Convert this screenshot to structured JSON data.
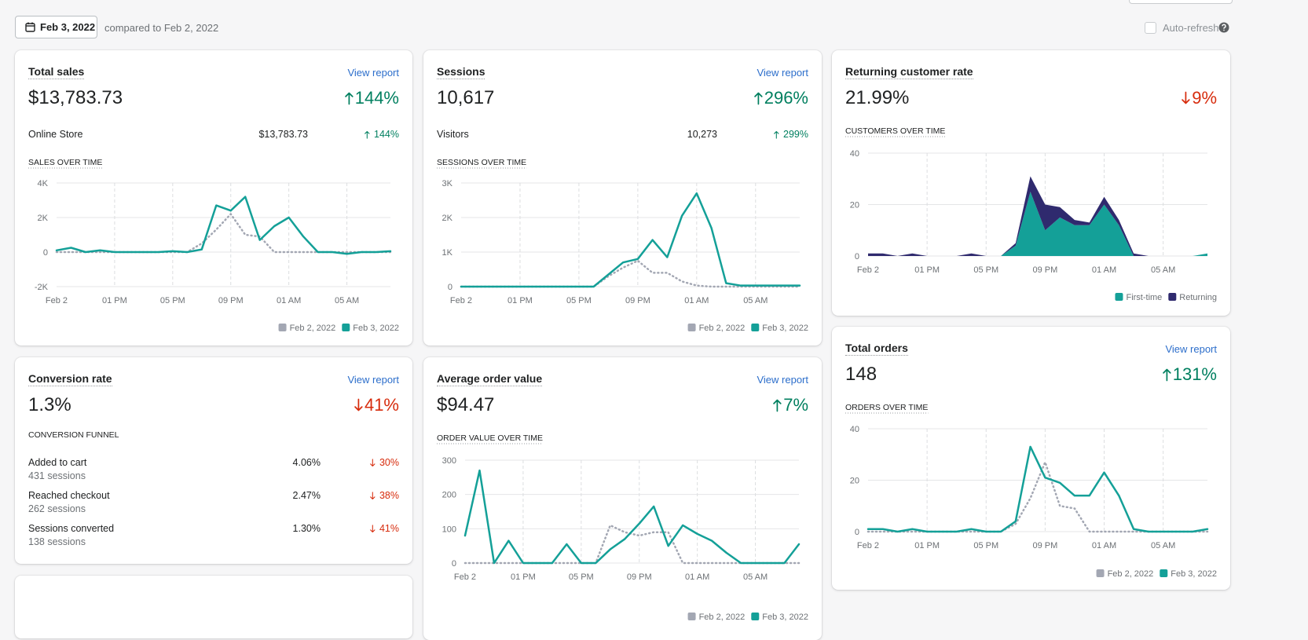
{
  "header": {
    "date": "Feb 3, 2022",
    "compared": "compared to Feb 2, 2022",
    "auto_refresh": "Auto-refresh"
  },
  "cards": [
    {
      "title": "Total sales",
      "link": "View report",
      "value": "$13,783.73",
      "change": "144%",
      "direction": "up",
      "breakdown": {
        "label": "Online Store",
        "value": "$13,783.73",
        "change": "144%",
        "direction": "up"
      }
    },
    {
      "title": "Sessions",
      "link": "View report",
      "value": "10,617",
      "change": "296%",
      "direction": "up",
      "breakdown": {
        "label": "Visitors",
        "value": "10,273",
        "change": "299%",
        "direction": "up"
      }
    },
    {
      "title": "Returning customer rate",
      "value": "21.99%",
      "change": "9%",
      "direction": "down"
    },
    {
      "title": "Conversion rate",
      "link": "View report",
      "value": "1.3%",
      "change": "41%",
      "direction": "down",
      "funnel": {
        "title": "CONVERSION FUNNEL",
        "rows": [
          {
            "label": "Added to cart",
            "sessions": "431 sessions",
            "value": "4.06%",
            "change": "30%",
            "direction": "down"
          },
          {
            "label": "Reached checkout",
            "sessions": "262 sessions",
            "value": "2.47%",
            "change": "38%",
            "direction": "down"
          },
          {
            "label": "Sessions converted",
            "sessions": "138 sessions",
            "value": "1.30%",
            "change": "41%",
            "direction": "down"
          }
        ]
      }
    },
    {
      "title": "Average order value",
      "link": "View report",
      "value": "$94.47",
      "change": "7%",
      "direction": "up"
    },
    {
      "title": "Total orders",
      "link": "View report",
      "value": "148",
      "change": "131%",
      "direction": "up"
    }
  ],
  "chart_data": [
    {
      "type": "line",
      "title": "SALES OVER TIME",
      "categories": [
        "Feb 2",
        null,
        null,
        null,
        "01 PM",
        null,
        null,
        null,
        "05 PM",
        null,
        null,
        null,
        "09 PM",
        null,
        null,
        null,
        "01 AM",
        null,
        null,
        null,
        "05 AM",
        null,
        null,
        null
      ],
      "ylim": [
        -2000,
        4000
      ],
      "yticks": [
        {
          "value": -2000,
          "label": "-2K"
        },
        0,
        {
          "value": 2000,
          "label": "2K"
        },
        {
          "value": 4000,
          "label": "4K"
        }
      ],
      "series": [
        {
          "name": "Feb 2, 2022",
          "color": "#a3a7b3",
          "dashed": true,
          "values": [
            0,
            0,
            0,
            0,
            0,
            0,
            0,
            0,
            0,
            0,
            500,
            1300,
            2200,
            1000,
            900,
            0,
            0,
            0,
            0,
            0,
            0,
            0,
            0,
            0
          ]
        },
        {
          "name": "Feb 3, 2022",
          "color": "#14a098",
          "values": [
            100,
            250,
            0,
            100,
            0,
            0,
            0,
            0,
            50,
            0,
            150,
            2700,
            2400,
            3200,
            700,
            1500,
            2000,
            900,
            0,
            0,
            -100,
            0,
            0,
            50
          ]
        }
      ]
    },
    {
      "type": "line",
      "title": "SESSIONS OVER TIME",
      "categories": [
        "Feb 2",
        null,
        null,
        null,
        "01 PM",
        null,
        null,
        null,
        "05 PM",
        null,
        null,
        null,
        "09 PM",
        null,
        null,
        null,
        "01 AM",
        null,
        null,
        null,
        "05 AM",
        null,
        null,
        null
      ],
      "ylim": [
        0,
        3000
      ],
      "yticks": [
        0,
        {
          "value": 1000,
          "label": "1K"
        },
        {
          "value": 2000,
          "label": "2K"
        },
        {
          "value": 3000,
          "label": "3K"
        }
      ],
      "series": [
        {
          "name": "Feb 2, 2022",
          "color": "#a3a7b3",
          "dashed": true,
          "values": [
            0,
            0,
            0,
            0,
            0,
            0,
            0,
            0,
            0,
            0,
            300,
            550,
            750,
            400,
            400,
            150,
            30,
            0,
            0,
            0,
            0,
            0,
            0,
            0
          ]
        },
        {
          "name": "Feb 3, 2022",
          "color": "#14a098",
          "values": [
            0,
            0,
            0,
            0,
            0,
            0,
            0,
            0,
            0,
            0,
            350,
            700,
            800,
            1350,
            850,
            2050,
            2700,
            1700,
            100,
            30,
            30,
            30,
            30,
            30
          ]
        }
      ]
    },
    {
      "type": "area",
      "title": "CUSTOMERS OVER TIME",
      "categories": [
        "Feb 2",
        null,
        null,
        null,
        "01 PM",
        null,
        null,
        null,
        "05 PM",
        null,
        null,
        null,
        "09 PM",
        null,
        null,
        null,
        "01 AM",
        null,
        null,
        null,
        "05 AM",
        null,
        null,
        null
      ],
      "ylim": [
        0,
        40
      ],
      "yticks": [
        0,
        20,
        40
      ],
      "series": [
        {
          "name": "First-time",
          "color": "#14a098",
          "values": [
            0,
            0,
            0,
            0,
            0,
            0,
            0,
            0,
            0,
            0,
            4,
            25,
            10,
            15,
            12,
            12,
            20,
            12,
            0,
            0,
            0,
            0,
            0,
            1
          ]
        },
        {
          "name": "Returning",
          "color": "#2f2a6e",
          "values": [
            1,
            1,
            0,
            1,
            0,
            0,
            0,
            1,
            0,
            0,
            1,
            6,
            10,
            4,
            2,
            1,
            3,
            2,
            1,
            0,
            0,
            0,
            0,
            0
          ]
        }
      ]
    },
    {
      "type": "line",
      "title": "ORDER VALUE OVER TIME",
      "categories": [
        "Feb 2",
        null,
        null,
        null,
        "01 PM",
        null,
        null,
        null,
        "05 PM",
        null,
        null,
        null,
        "09 PM",
        null,
        null,
        null,
        "01 AM",
        null,
        null,
        null,
        "05 AM",
        null,
        null,
        null
      ],
      "ylim": [
        0,
        300
      ],
      "yticks": [
        0,
        100,
        200,
        300
      ],
      "series": [
        {
          "name": "Feb 2, 2022",
          "color": "#a3a7b3",
          "dashed": true,
          "values": [
            0,
            0,
            0,
            0,
            0,
            0,
            0,
            0,
            0,
            0,
            110,
            90,
            80,
            90,
            90,
            0,
            0,
            0,
            0,
            0,
            0,
            0,
            0,
            0
          ]
        },
        {
          "name": "Feb 3, 2022",
          "color": "#14a098",
          "values": [
            80,
            270,
            0,
            65,
            0,
            0,
            0,
            55,
            0,
            0,
            40,
            70,
            115,
            165,
            50,
            110,
            85,
            65,
            30,
            0,
            0,
            0,
            0,
            55
          ]
        }
      ]
    },
    {
      "type": "line",
      "title": "ORDERS OVER TIME",
      "categories": [
        "Feb 2",
        null,
        null,
        null,
        "01 PM",
        null,
        null,
        null,
        "05 PM",
        null,
        null,
        null,
        "09 PM",
        null,
        null,
        null,
        "01 AM",
        null,
        null,
        null,
        "05 AM",
        null,
        null,
        null
      ],
      "ylim": [
        0,
        40
      ],
      "yticks": [
        0,
        20,
        40
      ],
      "series": [
        {
          "name": "Feb 2, 2022",
          "color": "#a3a7b3",
          "dashed": true,
          "values": [
            0,
            0,
            0,
            0,
            0,
            0,
            0,
            0,
            0,
            0,
            3,
            13,
            27,
            10,
            9,
            0,
            0,
            0,
            0,
            0,
            0,
            0,
            0,
            0
          ]
        },
        {
          "name": "Feb 3, 2022",
          "color": "#14a098",
          "values": [
            1,
            1,
            0,
            1,
            0,
            0,
            0,
            1,
            0,
            0,
            4,
            33,
            21,
            19,
            14,
            14,
            23,
            14,
            1,
            0,
            0,
            0,
            0,
            1
          ]
        }
      ]
    }
  ]
}
